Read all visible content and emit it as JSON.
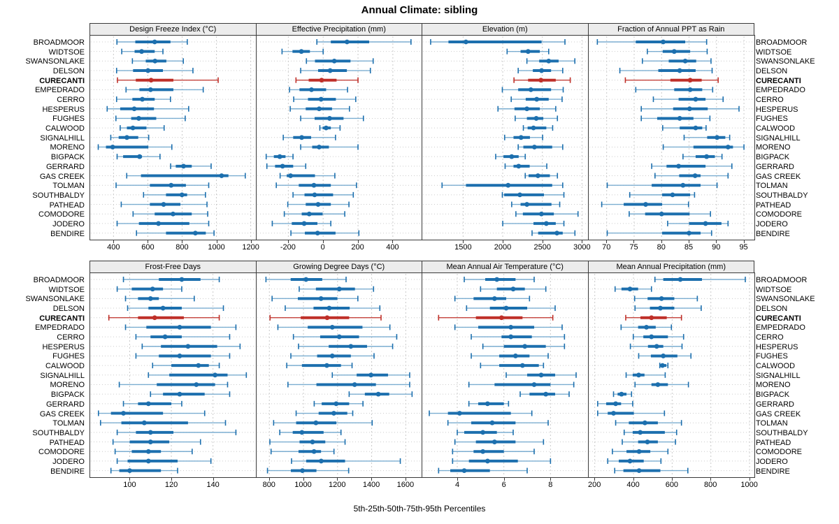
{
  "title": "Annual Climate: sibling",
  "footer": "5th-25th-50th-75th-95th Percentiles",
  "highlight_site": "CURECANTI",
  "colors": {
    "series": "#1c6fae",
    "series_light": "#6ea6cd",
    "highlight": "#bf2f28",
    "grid": "#c9c9c9",
    "row_guide": "#cccccc",
    "panel_header_bg": "#ececec",
    "panel_border": "#3a3a3a"
  },
  "sites": [
    "BROADMOOR",
    "WIDTSOE",
    "SWANSONLAKE",
    "DELSON",
    "CURECANTI",
    "EMPEDRADO",
    "CERRO",
    "HESPERUS",
    "FUGHES",
    "CALWOOD",
    "SIGNALHILL",
    "MORENO",
    "BIGPACK",
    "GERRARD",
    "GAS CREEK",
    "TOLMAN",
    "SOUTHBALDY",
    "PATHEAD",
    "COMODORE",
    "JODERO",
    "BENDIRE"
  ],
  "percentile_labels": [
    "p5",
    "p25",
    "p50",
    "p75",
    "p95"
  ],
  "chart_data": [
    {
      "type": "percentile_dotplot",
      "title": "Design Freeze Index (°C)",
      "xlim": [
        260,
        1230
      ],
      "ticks": [
        400,
        600,
        800,
        1000,
        1200
      ],
      "values": [
        [
          420,
          527,
          640,
          732,
          830
        ],
        [
          448,
          523,
          564,
          640,
          688
        ],
        [
          510,
          588,
          642,
          708,
          807
        ],
        [
          418,
          514,
          601,
          688,
          863
        ],
        [
          423,
          530,
          619,
          749,
          1010
        ],
        [
          473,
          551,
          616,
          749,
          923
        ],
        [
          418,
          510,
          568,
          640,
          732
        ],
        [
          363,
          439,
          521,
          636,
          838
        ],
        [
          414,
          503,
          547,
          649,
          818
        ],
        [
          439,
          478,
          513,
          592,
          695
        ],
        [
          384,
          430,
          478,
          544,
          605
        ],
        [
          311,
          356,
          395,
          603,
          740
        ],
        [
          421,
          456,
          552,
          566,
          671
        ],
        [
          733,
          763,
          808,
          856,
          969
        ],
        [
          477,
          560,
          1030,
          1070,
          1168
        ],
        [
          415,
          612,
          736,
          822,
          955
        ],
        [
          575,
          706,
          799,
          829,
          936
        ],
        [
          445,
          612,
          692,
          790,
          945
        ],
        [
          514,
          640,
          747,
          856,
          949
        ],
        [
          421,
          548,
          662,
          842,
          955
        ],
        [
          534,
          706,
          877,
          938,
          986
        ]
      ]
    },
    {
      "type": "percentile_dotplot",
      "title": "Effective Precipitation (mm)",
      "xlim": [
        -386,
        569
      ],
      "ticks": [
        -200,
        0,
        200,
        400
      ],
      "values": [
        [
          -36,
          44,
          137,
          264,
          504
        ],
        [
          -236,
          -176,
          -125,
          -76,
          0
        ],
        [
          -96,
          -47,
          64,
          157,
          287
        ],
        [
          -129,
          -29,
          40,
          136,
          271
        ],
        [
          -156,
          -83,
          -9,
          77,
          200
        ],
        [
          -193,
          -136,
          -67,
          17,
          140
        ],
        [
          -169,
          -87,
          -12,
          73,
          187
        ],
        [
          -189,
          -100,
          -23,
          51,
          151
        ],
        [
          -129,
          -49,
          37,
          117,
          231
        ],
        [
          -19,
          -3,
          17,
          44,
          97
        ],
        [
          -229,
          -172,
          -123,
          -69,
          71
        ],
        [
          -129,
          -63,
          -23,
          33,
          200
        ],
        [
          -327,
          -283,
          -249,
          -216,
          -173
        ],
        [
          -323,
          -276,
          -233,
          -172,
          -100
        ],
        [
          -247,
          -209,
          -187,
          -47,
          67
        ],
        [
          -269,
          -140,
          -53,
          44,
          191
        ],
        [
          -173,
          -107,
          -49,
          57,
          173
        ],
        [
          -203,
          -100,
          -29,
          44,
          148
        ],
        [
          -223,
          -123,
          -80,
          -3,
          124
        ],
        [
          -292,
          -180,
          -109,
          -33,
          44
        ],
        [
          -185,
          -105,
          -32,
          71,
          205
        ]
      ]
    },
    {
      "type": "percentile_dotplot",
      "title": "Elevation (m)",
      "xlim": [
        976,
        3076
      ],
      "ticks": [
        1500,
        2000,
        2500,
        3000
      ],
      "values": [
        [
          1090,
          1315,
          1535,
          2490,
          2785
        ],
        [
          2055,
          2225,
          2320,
          2468,
          2580
        ],
        [
          2305,
          2460,
          2580,
          2705,
          2910
        ],
        [
          2195,
          2380,
          2490,
          2610,
          2757
        ],
        [
          2142,
          2320,
          2482,
          2669,
          2852
        ],
        [
          1995,
          2195,
          2355,
          2610,
          2763
        ],
        [
          2107,
          2290,
          2429,
          2580,
          2749
        ],
        [
          1940,
          2148,
          2305,
          2468,
          2669
        ],
        [
          2157,
          2305,
          2423,
          2512,
          2690
        ],
        [
          2260,
          2314,
          2388,
          2550,
          2630
        ],
        [
          2024,
          2136,
          2231,
          2343,
          2503
        ],
        [
          2195,
          2260,
          2400,
          2624,
          2757
        ],
        [
          1911,
          2009,
          2113,
          2201,
          2284
        ],
        [
          2030,
          2136,
          2201,
          2340,
          2556
        ],
        [
          2284,
          2326,
          2444,
          2595,
          2690
        ],
        [
          1234,
          1536,
          2068,
          2624,
          2757
        ],
        [
          1995,
          2018,
          2216,
          2520,
          2772
        ],
        [
          2113,
          2225,
          2305,
          2615,
          2719
        ],
        [
          2166,
          2254,
          2488,
          2645,
          2950
        ],
        [
          2000,
          2388,
          2550,
          2669,
          2772
        ],
        [
          2370,
          2447,
          2684,
          2757,
          2911
        ]
      ]
    },
    {
      "type": "percentile_dotplot",
      "title": "Fraction of Annual PPT as Rain",
      "xlim": [
        66.6,
        96.9
      ],
      "ticks": [
        70,
        75,
        80,
        85,
        90,
        95
      ],
      "values": [
        [
          68.3,
          75.3,
          80.3,
          84.3,
          88.2
        ],
        [
          77.4,
          80.2,
          82.3,
          85.2,
          88.3
        ],
        [
          76.5,
          81.3,
          84.3,
          86.3,
          89.0
        ],
        [
          72.4,
          79.4,
          83.3,
          86.2,
          89.2
        ],
        [
          73.4,
          81.6,
          85.2,
          87.3,
          90.3
        ],
        [
          75.3,
          82.3,
          85.2,
          87.4,
          89.3
        ],
        [
          78.5,
          83.1,
          86.2,
          88.0,
          91.2
        ],
        [
          76.3,
          82.1,
          85.1,
          88.4,
          94.1
        ],
        [
          76.3,
          79.2,
          83.3,
          85.8,
          88.8
        ],
        [
          80.2,
          83.3,
          86.2,
          87.4,
          88.1
        ],
        [
          84.1,
          88.3,
          90.1,
          91.6,
          92.4
        ],
        [
          80.3,
          85.8,
          92.1,
          93.0,
          95.0
        ],
        [
          83.9,
          86.2,
          88.2,
          89.7,
          91.0
        ],
        [
          78.2,
          80.9,
          83.1,
          88.0,
          92.8
        ],
        [
          78.8,
          83.2,
          86.1,
          87.1,
          92.1
        ],
        [
          70.1,
          78.2,
          83.9,
          87.1,
          90.1
        ],
        [
          74.2,
          80.1,
          82.0,
          85.2,
          86.0
        ],
        [
          69.1,
          73.1,
          77.1,
          80.1,
          84.9
        ],
        [
          74.1,
          77.0,
          80.0,
          85.1,
          88.9
        ],
        [
          81.1,
          85.0,
          88.0,
          90.9,
          92.1
        ],
        [
          70.1,
          80.1,
          85.0,
          87.1,
          89.1
        ]
      ]
    },
    {
      "type": "percentile_dotplot",
      "title": "Frost-Free Days",
      "xlim": [
        80.7,
        160.6
      ],
      "ticks": [
        100,
        120,
        140
      ],
      "values": [
        [
          97,
          114,
          125,
          134,
          143
        ],
        [
          94,
          101,
          111,
          116,
          125
        ],
        [
          98,
          104,
          110,
          114,
          131
        ],
        [
          99,
          109,
          116,
          125,
          145
        ],
        [
          90,
          104,
          112,
          126,
          143
        ],
        [
          98,
          108,
          124,
          139,
          151
        ],
        [
          103,
          110,
          117,
          125,
          148
        ],
        [
          106,
          115,
          128,
          142,
          153
        ],
        [
          103,
          114,
          124,
          139,
          148
        ],
        [
          111,
          120,
          133,
          138,
          143
        ],
        [
          109,
          119,
          141,
          147,
          156
        ],
        [
          95,
          113,
          132,
          141,
          147
        ],
        [
          110,
          116,
          124,
          136,
          148
        ],
        [
          97,
          104,
          109,
          120,
          125
        ],
        [
          85,
          91,
          97,
          116,
          136
        ],
        [
          86,
          96,
          107,
          128,
          146
        ],
        [
          94,
          103,
          110,
          121,
          151
        ],
        [
          92,
          100,
          110,
          119,
          134
        ],
        [
          93,
          101,
          109,
          115,
          130
        ],
        [
          94,
          99,
          109,
          123,
          139
        ],
        [
          91,
          95,
          100,
          115,
          123
        ]
      ]
    },
    {
      "type": "percentile_dotplot",
      "title": "Growing Degree Days (°C)",
      "xlim": [
        721,
        1697
      ],
      "ticks": [
        800,
        1000,
        1200,
        1400,
        1600
      ],
      "values": [
        [
          780,
          925,
          1015,
          1110,
          1250
        ],
        [
          975,
          1073,
          1210,
          1302,
          1411
        ],
        [
          816,
          967,
          1103,
          1199,
          1319
        ],
        [
          893,
          1059,
          1151,
          1271,
          1448
        ],
        [
          804,
          984,
          1139,
          1268,
          1455
        ],
        [
          850,
          1025,
          1169,
          1346,
          1507
        ],
        [
          941,
          1098,
          1210,
          1326,
          1547
        ],
        [
          971,
          1148,
          1278,
          1373,
          1523
        ],
        [
          926,
          1080,
          1169,
          1278,
          1414
        ],
        [
          902,
          991,
          1137,
          1220,
          1285
        ],
        [
          1169,
          1312,
          1396,
          1496,
          1623
        ],
        [
          909,
          1076,
          1300,
          1425,
          1623
        ],
        [
          1268,
          1360,
          1439,
          1503,
          1637
        ],
        [
          1063,
          1107,
          1192,
          1268,
          1349
        ],
        [
          957,
          1089,
          1178,
          1257,
          1289
        ],
        [
          825,
          957,
          1073,
          1193,
          1403
        ],
        [
          861,
          937,
          991,
          1118,
          1220
        ],
        [
          803,
          977,
          1053,
          1128,
          1244
        ],
        [
          810,
          971,
          1062,
          1103,
          1179
        ],
        [
          930,
          1016,
          1104,
          1244,
          1568
        ],
        [
          789,
          926,
          994,
          1076,
          1265
        ]
      ]
    },
    {
      "type": "percentile_dotplot",
      "title": "Mean Annual Air Temperature (°C)",
      "xlim": [
        2.47,
        9.61
      ],
      "ticks": [
        4,
        6,
        8
      ],
      "values": [
        [
          4.3,
          5.2,
          5.7,
          6.5,
          7.3
        ],
        [
          5.0,
          5.7,
          6.4,
          6.9,
          7.8
        ],
        [
          3.9,
          4.7,
          5.6,
          6.1,
          7.1
        ],
        [
          4.4,
          5.4,
          6.1,
          7.0,
          8.2
        ],
        [
          3.2,
          4.8,
          5.9,
          6.8,
          8.1
        ],
        [
          3.9,
          4.9,
          6.3,
          7.3,
          8.5
        ],
        [
          4.6,
          5.9,
          6.3,
          7.2,
          8.6
        ],
        [
          5.1,
          6.0,
          6.9,
          7.8,
          8.6
        ],
        [
          4.6,
          5.8,
          6.5,
          7.1,
          7.9
        ],
        [
          5.0,
          5.8,
          6.8,
          7.5,
          7.7
        ],
        [
          6.1,
          7.0,
          7.6,
          8.2,
          9.1
        ],
        [
          4.5,
          5.6,
          7.3,
          8.0,
          9.0
        ],
        [
          6.7,
          7.1,
          7.8,
          8.2,
          8.8
        ],
        [
          4.5,
          4.9,
          5.3,
          6.0,
          6.2
        ],
        [
          2.8,
          3.6,
          4.1,
          6.3,
          7.2
        ],
        [
          3.6,
          4.6,
          5.5,
          6.5,
          7.9
        ],
        [
          4.0,
          4.3,
          5.1,
          5.7,
          6.4
        ],
        [
          3.9,
          4.8,
          5.6,
          6.5,
          7.7
        ],
        [
          3.8,
          4.7,
          5.1,
          6.0,
          7.3
        ],
        [
          3.8,
          4.5,
          5.3,
          6.6,
          8.0
        ],
        [
          3.2,
          3.7,
          4.3,
          5.4,
          7.0
        ]
      ]
    },
    {
      "type": "percentile_dotplot",
      "title": "Mean Annual Precipitation (mm)",
      "xlim": [
        165,
        1025
      ],
      "ticks": [
        200,
        400,
        600,
        800,
        1000
      ],
      "values": [
        [
          511,
          554,
          642,
          754,
          978
        ],
        [
          305,
          338,
          382,
          424,
          493
        ],
        [
          406,
          473,
          545,
          611,
          730
        ],
        [
          408,
          485,
          539,
          611,
          750
        ],
        [
          360,
          436,
          493,
          572,
          648
        ],
        [
          336,
          424,
          467,
          515,
          596
        ],
        [
          399,
          451,
          493,
          578,
          659
        ],
        [
          384,
          475,
          520,
          554,
          651
        ],
        [
          427,
          490,
          554,
          627,
          697
        ],
        [
          536,
          539,
          550,
          570,
          578
        ],
        [
          362,
          396,
          427,
          457,
          564
        ],
        [
          408,
          493,
          526,
          578,
          684
        ],
        [
          297,
          318,
          338,
          364,
          390
        ],
        [
          215,
          259,
          308,
          336,
          396
        ],
        [
          215,
          267,
          297,
          402,
          560
        ],
        [
          308,
          376,
          459,
          526,
          648
        ],
        [
          352,
          396,
          435,
          562,
          623
        ],
        [
          342,
          424,
          472,
          526,
          617
        ],
        [
          291,
          364,
          429,
          487,
          578
        ],
        [
          267,
          324,
          382,
          453,
          542
        ],
        [
          303,
          348,
          429,
          539,
          681
        ]
      ]
    }
  ]
}
